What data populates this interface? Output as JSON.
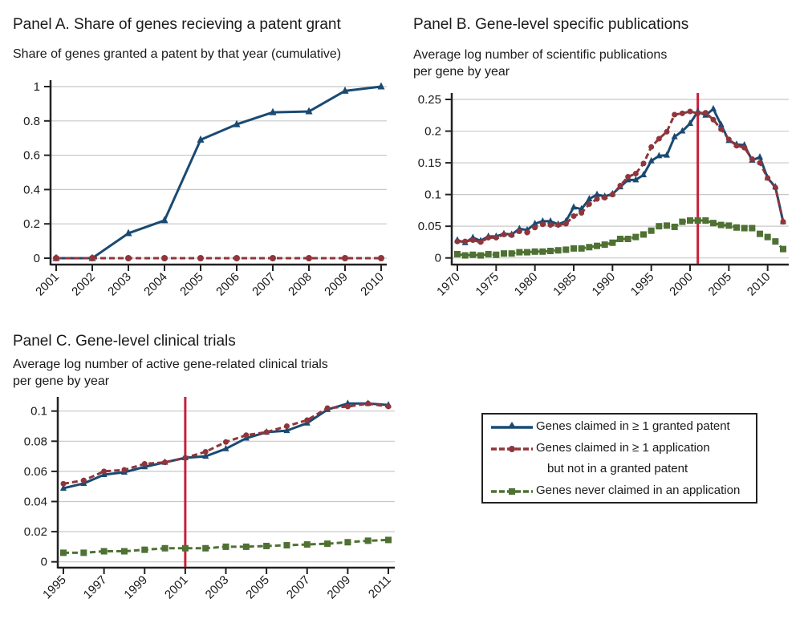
{
  "panels": {
    "a": {
      "title": "Panel A. Share of genes recieving a patent grant",
      "subtitle": [
        "Share of genes granted a patent by that year (cumulative)"
      ]
    },
    "b": {
      "title": "Panel B. Gene-level specific publications",
      "subtitle": [
        "Average log number of scientific publications",
        "per gene by year"
      ]
    },
    "c": {
      "title": "Panel C. Gene-level clinical trials",
      "subtitle": [
        "Average log number of active gene-related clinical trials",
        "per gene by year"
      ]
    }
  },
  "legend": {
    "items": [
      {
        "label": "Genes claimed in ≥ 1 granted patent",
        "series": "granted"
      },
      {
        "label": "Genes claimed in ≥ 1 application",
        "series": "application"
      },
      {
        "label": "but not in a granted patent",
        "series": null
      },
      {
        "label": "Genes never claimed in an application",
        "series": "never"
      }
    ]
  },
  "colors": {
    "granted": "#1a4a72",
    "application": "#90353b",
    "never": "#4f7133",
    "vline": "#c8203a",
    "grid": "#c8c8c8"
  },
  "chart_data": [
    {
      "id": "a",
      "type": "line",
      "title": "Panel A. Share of genes recieving a patent grant",
      "ylabel": "Share of genes granted a patent by that year (cumulative)",
      "xlabel": "",
      "ylim": [
        0,
        1
      ],
      "yticks": [
        0,
        0.2,
        0.4,
        0.6,
        0.8,
        1
      ],
      "ytick_labels": [
        "0",
        "0.2",
        "0.4",
        "0.6",
        "0.8",
        "1"
      ],
      "xticks": [
        2001,
        2002,
        2003,
        2004,
        2005,
        2006,
        2007,
        2008,
        2009,
        2010
      ],
      "grid": true,
      "x": [
        2001,
        2002,
        2003,
        2004,
        2005,
        2006,
        2007,
        2008,
        2009,
        2010
      ],
      "series": [
        {
          "name": "Genes claimed in ≥ 1 granted patent",
          "key": "granted",
          "values": [
            0,
            0,
            0.145,
            0.22,
            0.69,
            0.78,
            0.85,
            0.855,
            0.975,
            1.0
          ]
        },
        {
          "name": "Genes claimed in ≥ 1 application but not in a granted patent",
          "key": "application",
          "values": [
            0,
            0,
            0,
            0,
            0,
            0,
            0,
            0,
            0,
            0
          ]
        }
      ]
    },
    {
      "id": "b",
      "type": "line",
      "title": "Panel B. Gene-level specific publications",
      "ylabel": "Average log number of scientific publications per gene by year",
      "xlabel": "",
      "ylim": [
        0,
        0.25
      ],
      "yticks": [
        0,
        0.05,
        0.1,
        0.15,
        0.2,
        0.25
      ],
      "ytick_labels": [
        "0",
        "0.05",
        "0.1",
        "0.15",
        "0.2",
        "0.25"
      ],
      "xticks": [
        1970,
        1975,
        1980,
        1985,
        1990,
        1995,
        2000,
        2005,
        2010
      ],
      "grid": true,
      "vline": 2001,
      "x": [
        1970,
        1971,
        1972,
        1973,
        1974,
        1975,
        1976,
        1977,
        1978,
        1979,
        1980,
        1981,
        1982,
        1983,
        1984,
        1985,
        1986,
        1987,
        1988,
        1989,
        1990,
        1991,
        1992,
        1993,
        1994,
        1995,
        1996,
        1997,
        1998,
        1999,
        2000,
        2001,
        2002,
        2003,
        2004,
        2005,
        2006,
        2007,
        2008,
        2009,
        2010,
        2011,
        2012
      ],
      "series": [
        {
          "name": "Genes claimed in ≥ 1 granted patent",
          "key": "granted",
          "values": [
            0.028,
            0.024,
            0.032,
            0.027,
            0.034,
            0.034,
            0.038,
            0.037,
            0.046,
            0.044,
            0.054,
            0.058,
            0.058,
            0.053,
            0.058,
            0.08,
            0.077,
            0.093,
            0.1,
            0.097,
            0.101,
            0.112,
            0.123,
            0.123,
            0.131,
            0.153,
            0.161,
            0.162,
            0.191,
            0.2,
            0.212,
            0.231,
            0.225,
            0.235,
            0.21,
            0.185,
            0.179,
            0.178,
            0.154,
            0.159,
            0.126,
            0.112,
            0.057
          ]
        },
        {
          "name": "Genes claimed in ≥ 1 application but not in a granted patent",
          "key": "application",
          "values": [
            0.026,
            0.026,
            0.028,
            0.025,
            0.032,
            0.032,
            0.037,
            0.036,
            0.042,
            0.04,
            0.048,
            0.053,
            0.052,
            0.052,
            0.054,
            0.066,
            0.071,
            0.085,
            0.093,
            0.095,
            0.1,
            0.114,
            0.128,
            0.133,
            0.149,
            0.175,
            0.188,
            0.199,
            0.226,
            0.228,
            0.231,
            0.228,
            0.229,
            0.218,
            0.203,
            0.187,
            0.177,
            0.174,
            0.156,
            0.15,
            0.126,
            0.111,
            0.057
          ]
        },
        {
          "name": "Genes never claimed in an application",
          "key": "never",
          "values": [
            0.006,
            0.004,
            0.005,
            0.004,
            0.006,
            0.005,
            0.007,
            0.007,
            0.009,
            0.009,
            0.01,
            0.01,
            0.011,
            0.012,
            0.013,
            0.015,
            0.015,
            0.017,
            0.019,
            0.021,
            0.024,
            0.03,
            0.03,
            0.033,
            0.037,
            0.043,
            0.05,
            0.051,
            0.049,
            0.057,
            0.059,
            0.059,
            0.059,
            0.055,
            0.052,
            0.051,
            0.048,
            0.047,
            0.047,
            0.038,
            0.033,
            0.026,
            0.014
          ]
        }
      ]
    },
    {
      "id": "c",
      "type": "line",
      "title": "Panel C. Gene-level clinical trials",
      "ylabel": "Average log number of active gene-related clinical trials per gene by year",
      "xlabel": "",
      "ylim": [
        0,
        0.1
      ],
      "yticks": [
        0,
        0.02,
        0.04,
        0.06,
        0.08,
        0.1
      ],
      "ytick_labels": [
        "0",
        "0.02",
        "0.04",
        "0.06",
        "0.08",
        "0.1"
      ],
      "xticks": [
        1995,
        1997,
        1999,
        2001,
        2003,
        2005,
        2007,
        2009,
        2011
      ],
      "grid": true,
      "vline": 2001,
      "x": [
        1995,
        1996,
        1997,
        1998,
        1999,
        2000,
        2001,
        2002,
        2003,
        2004,
        2005,
        2006,
        2007,
        2008,
        2009,
        2010,
        2011
      ],
      "series": [
        {
          "name": "Genes claimed in ≥ 1 granted patent",
          "key": "granted",
          "values": [
            0.0488,
            0.052,
            0.0578,
            0.0594,
            0.063,
            0.066,
            0.069,
            0.07,
            0.075,
            0.082,
            0.086,
            0.087,
            0.092,
            0.101,
            0.105,
            0.105,
            0.104
          ]
        },
        {
          "name": "Genes claimed in ≥ 1 application but not in a granted patent",
          "key": "application",
          "values": [
            0.0518,
            0.054,
            0.06,
            0.061,
            0.065,
            0.066,
            0.069,
            0.073,
            0.0795,
            0.084,
            0.086,
            0.09,
            0.094,
            0.102,
            0.103,
            0.105,
            0.103
          ]
        },
        {
          "name": "Genes never claimed in an application",
          "key": "never",
          "values": [
            0.006,
            0.006,
            0.007,
            0.007,
            0.008,
            0.009,
            0.009,
            0.009,
            0.01,
            0.01,
            0.0105,
            0.011,
            0.0115,
            0.012,
            0.013,
            0.014,
            0.0145
          ]
        }
      ]
    }
  ]
}
